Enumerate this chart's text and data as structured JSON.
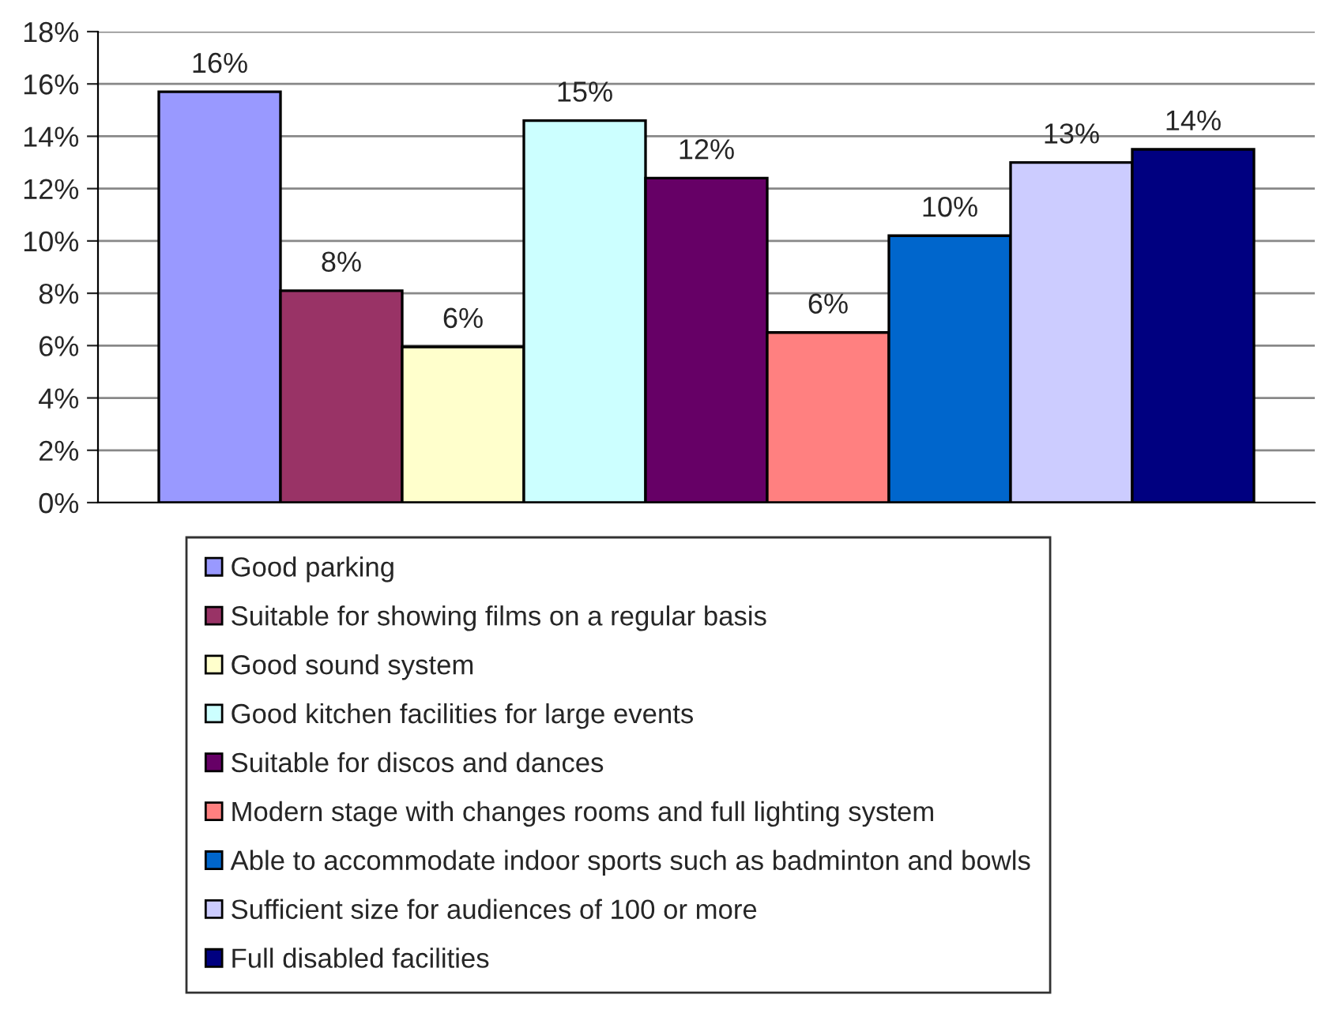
{
  "chart_data": {
    "type": "bar",
    "categories": [
      null
    ],
    "series": [
      {
        "name": "Good parking",
        "color": "#9999ff",
        "values": [
          15.7
        ],
        "value_labels": [
          "16%"
        ]
      },
      {
        "name": "Suitable for showing films on a regular basis",
        "color": "#993366",
        "values": [
          8.1
        ],
        "value_labels": [
          "8%"
        ]
      },
      {
        "name": "Good sound system",
        "color": "#ffffcc",
        "values": [
          5.95
        ],
        "value_labels": [
          "6%"
        ]
      },
      {
        "name": "Good kitchen facilities for large events",
        "color": "#ccffff",
        "values": [
          14.6
        ],
        "value_labels": [
          "15%"
        ]
      },
      {
        "name": "Suitable for discos and dances",
        "color": "#660066",
        "values": [
          12.4
        ],
        "value_labels": [
          "12%"
        ]
      },
      {
        "name": "Modern stage with changes rooms and full lighting system",
        "color": "#ff8080",
        "values": [
          6.5
        ],
        "value_labels": [
          "6%"
        ]
      },
      {
        "name": "Able to accommodate indoor sports such as badminton and bowls",
        "color": "#0066cc",
        "values": [
          10.2
        ],
        "value_labels": [
          "10%"
        ]
      },
      {
        "name": "Sufficient size for audiences of 100 or more",
        "color": "#ccccff",
        "values": [
          13.0
        ],
        "value_labels": [
          "13%"
        ]
      },
      {
        "name": "Full disabled facilities",
        "color": "#000080",
        "values": [
          13.5
        ],
        "value_labels": [
          "14%"
        ]
      }
    ],
    "ylim": [
      0,
      18
    ],
    "yticks": [
      {
        "value": 0,
        "label": "0%"
      },
      {
        "value": 2,
        "label": "2%"
      },
      {
        "value": 4,
        "label": "4%"
      },
      {
        "value": 6,
        "label": "6%"
      },
      {
        "value": 8,
        "label": "8%"
      },
      {
        "value": 10,
        "label": "10%"
      },
      {
        "value": 12,
        "label": "12%"
      },
      {
        "value": 14,
        "label": "14%"
      },
      {
        "value": 16,
        "label": "16%"
      },
      {
        "value": 18,
        "label": "18%"
      }
    ],
    "grid": "y",
    "legend": "bottom"
  }
}
